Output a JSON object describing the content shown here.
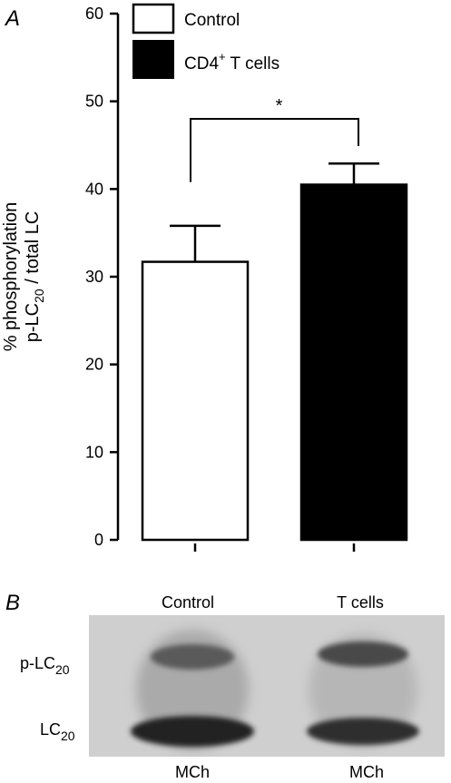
{
  "panel_a": {
    "letter": "A",
    "ylabel_line1": "% phosphorylation",
    "ylabel_line2_main": "p-LC",
    "ylabel_line2_sub": "20",
    "ylabel_line2_rest": " / total LC",
    "significance": "*"
  },
  "legend": {
    "items": [
      {
        "label": "Control",
        "fill": "#ffffff"
      },
      {
        "label_main": "CD4",
        "label_sup": "+",
        "label_rest": " T cells",
        "fill": "#000000"
      }
    ],
    "placement": "top"
  },
  "chart_data": {
    "type": "bar",
    "categories": [
      "Control",
      "CD4+ T cells"
    ],
    "values": [
      31.7,
      40.5
    ],
    "errors": [
      4.1,
      2.4
    ],
    "colors": [
      "#ffffff",
      "#000000"
    ],
    "ylim": [
      0,
      60
    ],
    "yticks": [
      0,
      10,
      20,
      30,
      40,
      50,
      60
    ],
    "grid": false,
    "significance": {
      "between": [
        0,
        1
      ],
      "label": "*",
      "y": 48
    }
  },
  "panel_b": {
    "letter": "B",
    "column_labels": [
      "Control",
      "T cells"
    ],
    "row_labels": [
      {
        "main": "p-LC",
        "sub": "20"
      },
      {
        "main": "LC",
        "sub": "20"
      }
    ],
    "bottom_labels": [
      "MCh",
      "MCh"
    ]
  }
}
